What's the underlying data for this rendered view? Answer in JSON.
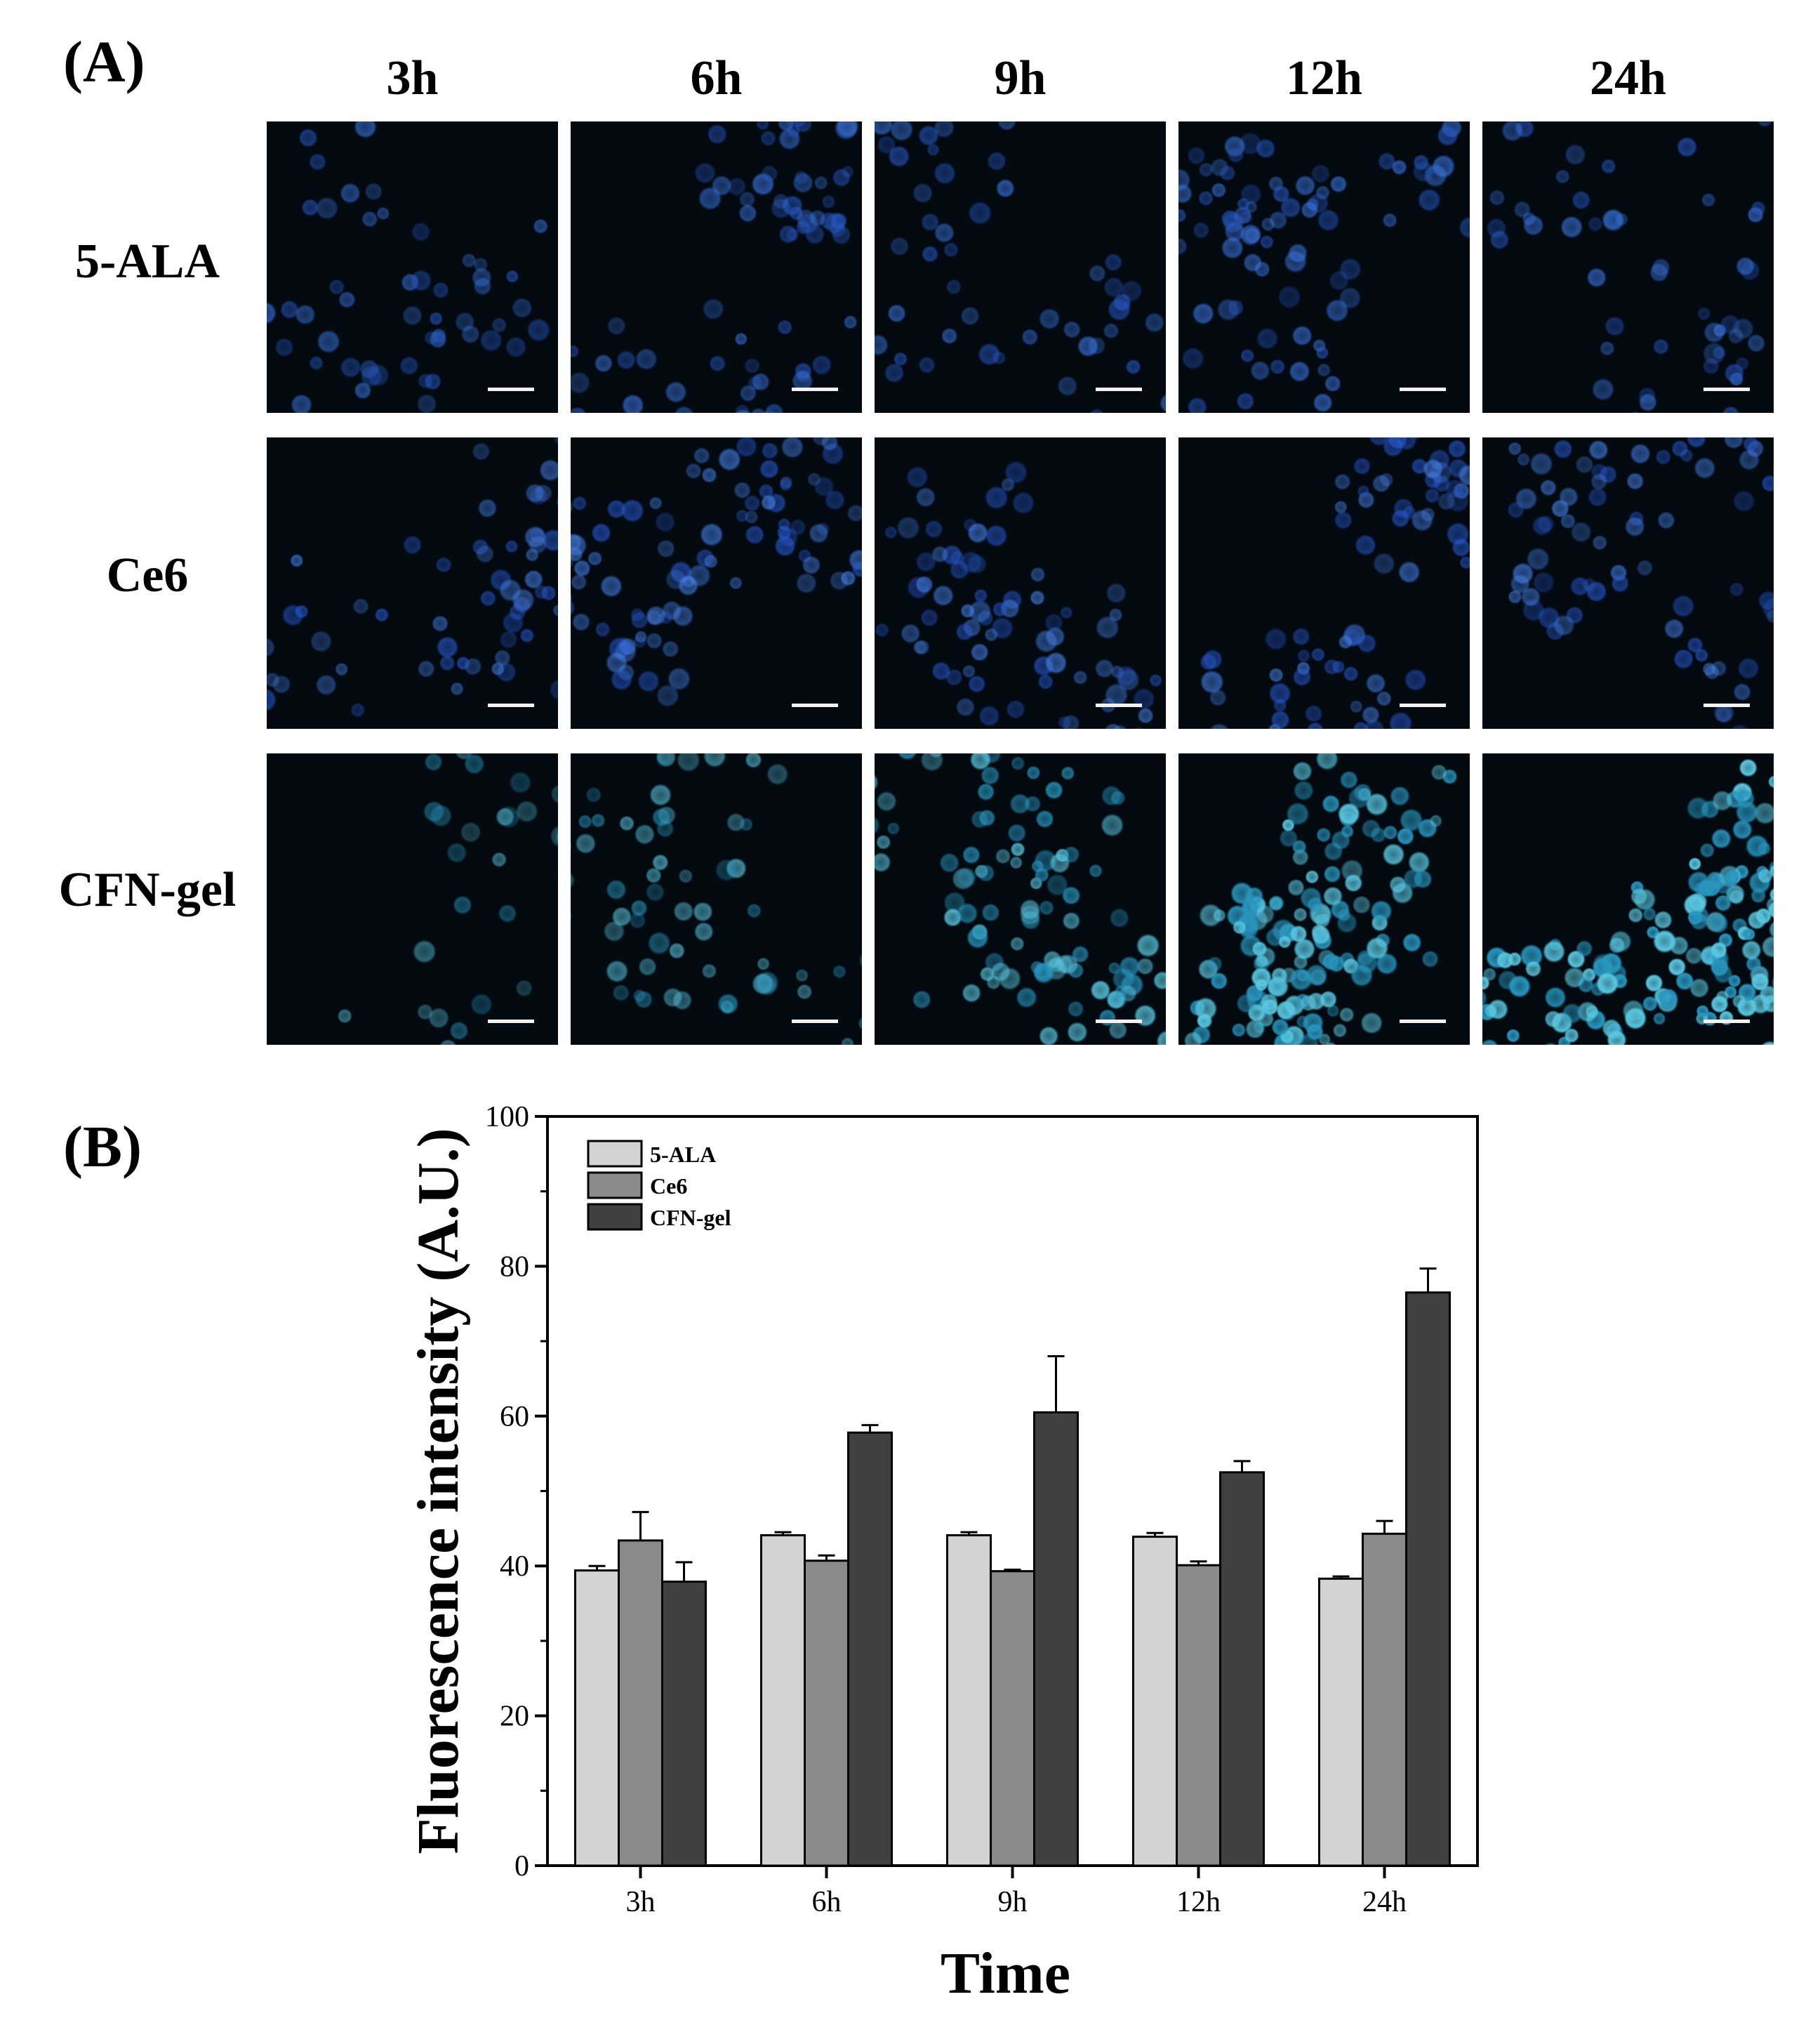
{
  "panel_a": {
    "label": "(A)",
    "columns": [
      "3h",
      "6h",
      "9h",
      "12h",
      "24h"
    ],
    "rows": [
      "5-ALA",
      "Ce6",
      "CFN-gel"
    ]
  },
  "panel_b": {
    "label": "(B)"
  },
  "chart_data": {
    "type": "bar",
    "categories": [
      "3h",
      "6h",
      "9h",
      "12h",
      "24h"
    ],
    "series": [
      {
        "name": "5-ALA",
        "values": [
          39.4,
          44.1,
          44.1,
          43.9,
          38.3
        ],
        "errors": [
          0.6,
          0.4,
          0.4,
          0.5,
          0.3
        ],
        "color": "#d3d3d3"
      },
      {
        "name": "Ce6",
        "values": [
          43.4,
          40.7,
          39.3,
          40.1,
          44.3
        ],
        "errors": [
          3.8,
          0.7,
          0.2,
          0.5,
          1.7
        ],
        "color": "#8a8a8a"
      },
      {
        "name": "CFN-gel",
        "values": [
          37.9,
          57.8,
          60.5,
          52.5,
          76.5
        ],
        "errors": [
          2.6,
          1.0,
          7.5,
          1.5,
          3.2
        ],
        "color": "#404040"
      }
    ],
    "xlabel": "Time",
    "ylabel": "Fluorescence intensity (A.U.)",
    "ylim": [
      0,
      100
    ],
    "yticks": [
      0,
      20,
      40,
      60,
      80,
      100
    ],
    "legend_position": "top-left"
  }
}
